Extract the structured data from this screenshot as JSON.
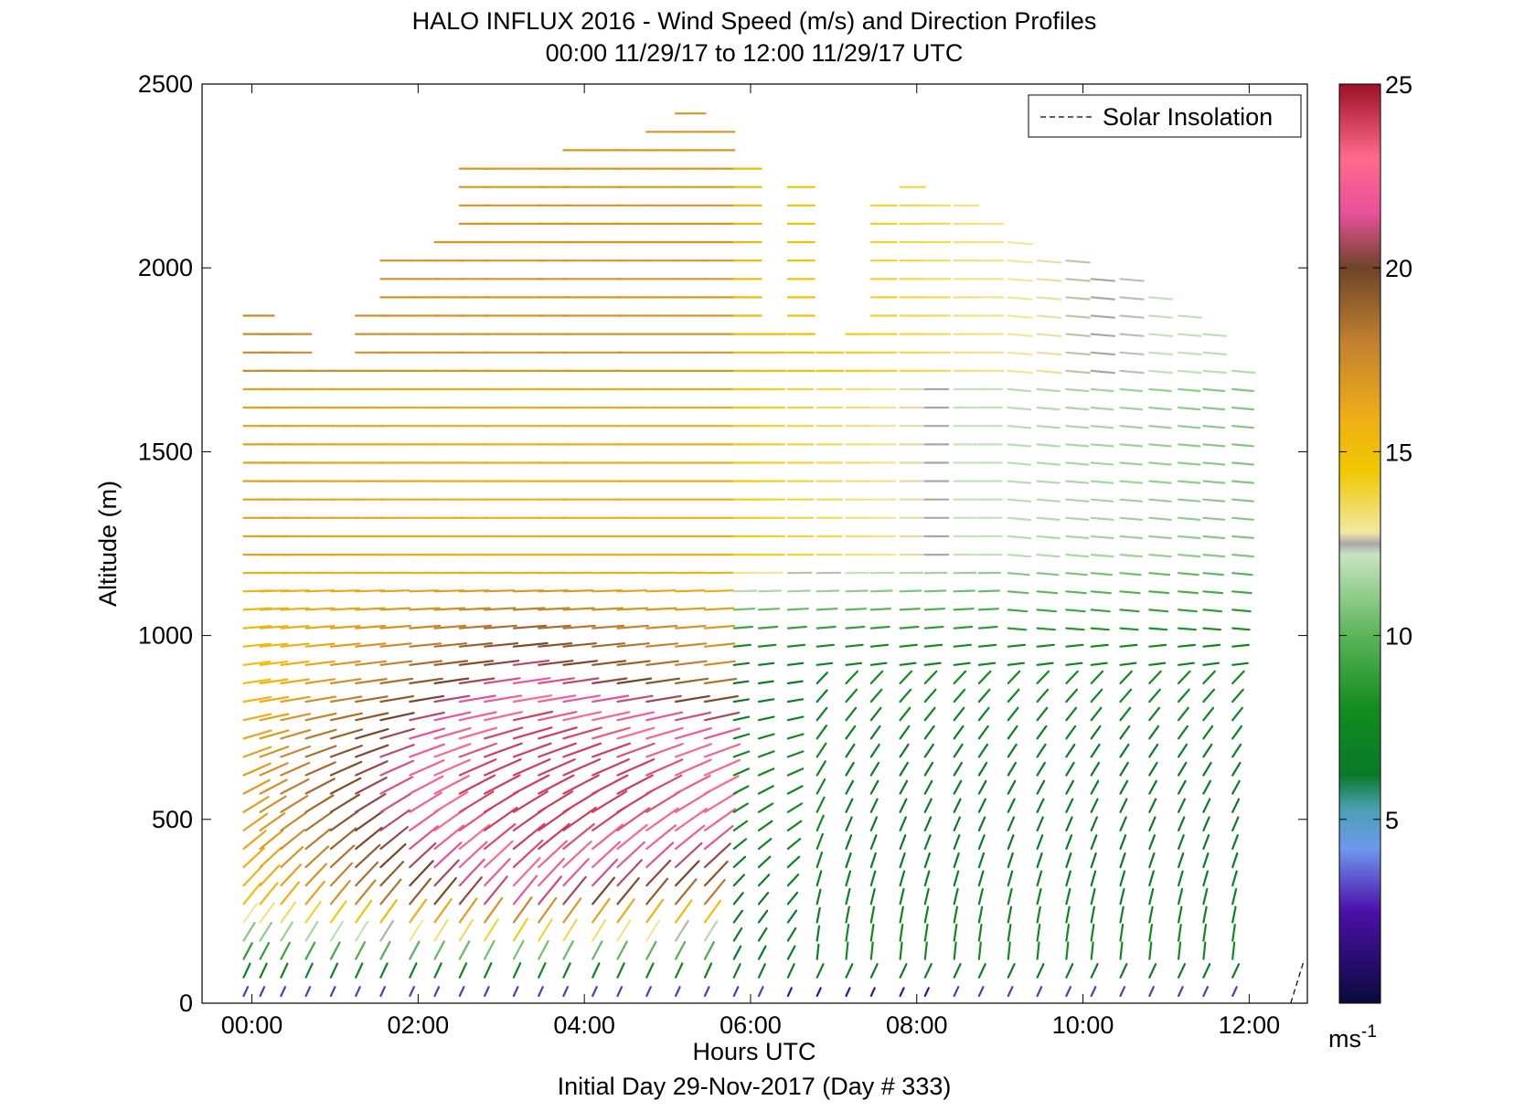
{
  "chart_data": {
    "type": "vector-field",
    "title": "HALO INFLUX 2016 - Wind Speed (m/s) and Direction Profiles",
    "subtitle": "00:00 11/29/17 to 12:00 11/29/17  UTC",
    "xlabel": "Hours UTC",
    "xlabel2": "Initial Day 29-Nov-2017 (Day # 333)",
    "ylabel": "Altitude (m)",
    "xlim": [
      -0.6,
      12.7
    ],
    "ylim": [
      0,
      2500
    ],
    "xticks": [
      {
        "value": 0,
        "label": "00:00"
      },
      {
        "value": 2,
        "label": "02:00"
      },
      {
        "value": 4,
        "label": "04:00"
      },
      {
        "value": 6,
        "label": "06:00"
      },
      {
        "value": 8,
        "label": "08:00"
      },
      {
        "value": 10,
        "label": "10:00"
      },
      {
        "value": 12,
        "label": "12:00"
      }
    ],
    "yticks": [
      {
        "value": 0,
        "label": "0"
      },
      {
        "value": 500,
        "label": "500"
      },
      {
        "value": 1000,
        "label": "1000"
      },
      {
        "value": 1500,
        "label": "1500"
      },
      {
        "value": 2000,
        "label": "2000"
      },
      {
        "value": 2500,
        "label": "2500"
      }
    ],
    "legend": {
      "position": "top-right",
      "entries": [
        {
          "name": "Solar Insolation",
          "style": "dashed",
          "color": "#000000"
        }
      ]
    },
    "solar_insolation": {
      "x": [
        12.5,
        12.65
      ],
      "y": [
        0,
        110
      ]
    },
    "colorbar": {
      "range": [
        0,
        25
      ],
      "ticks": [
        {
          "value": 5,
          "label": "5"
        },
        {
          "value": 10,
          "label": "10"
        },
        {
          "value": 15,
          "label": "15"
        },
        {
          "value": 20,
          "label": "20"
        },
        {
          "value": 25,
          "label": "25"
        }
      ],
      "unit": "ms",
      "unit_exp": "-1",
      "stops": [
        {
          "v": 0,
          "c": "#0a0a3c"
        },
        {
          "v": 2.5,
          "c": "#4a10a8"
        },
        {
          "v": 4.2,
          "c": "#6e98ee"
        },
        {
          "v": 5.3,
          "c": "#4aa0b0"
        },
        {
          "v": 6.2,
          "c": "#0a7a2a"
        },
        {
          "v": 8,
          "c": "#128c1e"
        },
        {
          "v": 10,
          "c": "#5ab45a"
        },
        {
          "v": 12.2,
          "c": "#c8e4c0"
        },
        {
          "v": 12.5,
          "c": "#a8a8a8"
        },
        {
          "v": 12.8,
          "c": "#f2e8a0"
        },
        {
          "v": 14.5,
          "c": "#f0c800"
        },
        {
          "v": 16,
          "c": "#eeac18"
        },
        {
          "v": 18,
          "c": "#c08030"
        },
        {
          "v": 20,
          "c": "#6e4428"
        },
        {
          "v": 21.5,
          "c": "#e8509a"
        },
        {
          "v": 23,
          "c": "#ff6a8c"
        },
        {
          "v": 25,
          "c": "#9c1028"
        }
      ]
    },
    "profile_times": [
      -0.1,
      0.1,
      0.35,
      0.65,
      0.95,
      1.25,
      1.55,
      1.9,
      2.2,
      2.5,
      2.8,
      3.15,
      3.45,
      3.75,
      4.1,
      4.4,
      4.75,
      5.1,
      5.45,
      5.8,
      6.1,
      6.45,
      6.8,
      7.15,
      7.45,
      7.8,
      8.1,
      8.45,
      8.75,
      9.1,
      9.45,
      9.8,
      10.1,
      10.45,
      10.8,
      11.15,
      11.45,
      11.8
    ],
    "profile_tops": [
      1910,
      1860,
      1860,
      1740,
      1740,
      1910,
      2030,
      2060,
      2110,
      2280,
      2280,
      2290,
      2300,
      2330,
      2330,
      2350,
      2380,
      2420,
      2380,
      2290,
      1840,
      2240,
      1810,
      1840,
      2200,
      2220,
      2210,
      2170,
      2130,
      2070,
      2060,
      2020,
      2000,
      1980,
      1960,
      1880,
      1860,
      1760
    ],
    "level_spacing_m": 50,
    "bottom_altitude_m": 20,
    "dominant_direction_deg_from": {
      "surface": 210,
      "low_jet": 250,
      "aloft": 270
    }
  }
}
